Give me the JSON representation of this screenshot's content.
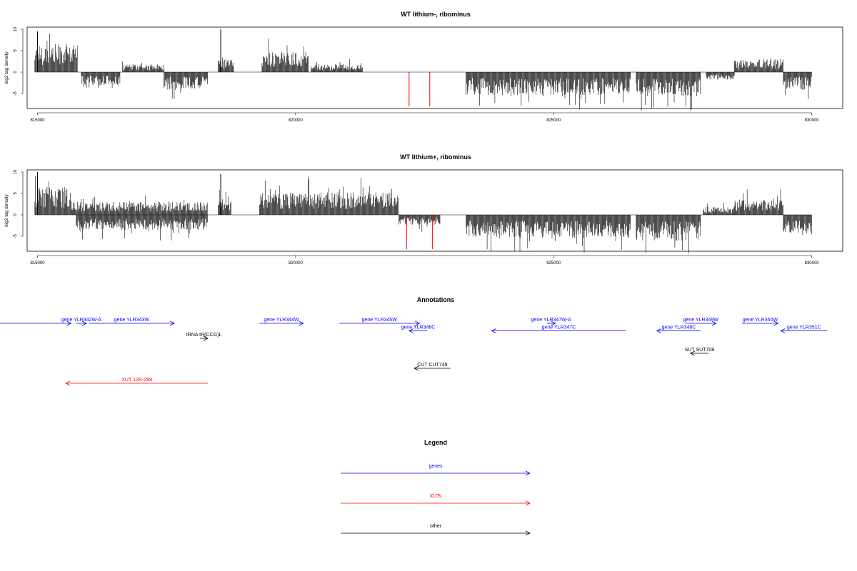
{
  "chart_data": [
    {
      "type": "bar",
      "title": "WT lithium-, ribominus",
      "ylabel": "log2 tag density",
      "xlim": [
        814800,
        830600
      ],
      "ylim": [
        -8.5,
        10.5
      ],
      "x_ticks": [
        815000,
        820000,
        825000,
        830000
      ],
      "x_tick_labels": [
        "815000",
        "820000",
        "825000",
        "830000"
      ],
      "y_ticks": [
        -5,
        0,
        5,
        10
      ],
      "y_tick_labels": [
        "-5",
        "0",
        "5",
        "10"
      ],
      "grid": false,
      "density_regions": [
        {
          "start": 814950,
          "end": 815780,
          "sign": 1,
          "level": 5.5
        },
        {
          "start": 815850,
          "end": 816600,
          "sign": -1,
          "level": 2.5
        },
        {
          "start": 816650,
          "end": 817450,
          "sign": 1,
          "level": 1.5
        },
        {
          "start": 817450,
          "end": 818300,
          "sign": -1,
          "level": 3.5
        },
        {
          "start": 818500,
          "end": 818800,
          "sign": 1,
          "level": 2.5
        },
        {
          "start": 819350,
          "end": 820250,
          "sign": 1,
          "level": 4.0
        },
        {
          "start": 820300,
          "end": 821300,
          "sign": 1,
          "level": 1.5
        },
        {
          "start": 823300,
          "end": 826500,
          "sign": -1,
          "level": 4.5
        },
        {
          "start": 826600,
          "end": 827850,
          "sign": -1,
          "level": 5.0
        },
        {
          "start": 827950,
          "end": 828500,
          "sign": -1,
          "level": 1.5
        },
        {
          "start": 828500,
          "end": 829450,
          "sign": 1,
          "level": 2.5
        },
        {
          "start": 829450,
          "end": 830000,
          "sign": -1,
          "level": 3.5
        }
      ],
      "spikes": [
        {
          "x": 815000,
          "value": 9.5
        },
        {
          "x": 818550,
          "value": 10
        },
        {
          "x": 822200,
          "value": -8,
          "color": "#ff0000"
        },
        {
          "x": 822600,
          "value": -8,
          "color": "#ff0000"
        }
      ]
    },
    {
      "type": "bar",
      "title": "WT lithium+, ribominus",
      "ylabel": "log2 tag density",
      "xlim": [
        814800,
        830600
      ],
      "ylim": [
        -8.5,
        10.5
      ],
      "x_ticks": [
        815000,
        820000,
        825000,
        830000
      ],
      "x_tick_labels": [
        "815000",
        "820000",
        "825000",
        "830000"
      ],
      "y_ticks": [
        -5,
        0,
        5,
        10
      ],
      "y_tick_labels": [
        "-5",
        "0",
        "5",
        "10"
      ],
      "grid": false,
      "density_regions": [
        {
          "start": 814950,
          "end": 815650,
          "sign": 1,
          "level": 5.5
        },
        {
          "start": 815650,
          "end": 818300,
          "sign": 1,
          "level": 2.5
        },
        {
          "start": 815750,
          "end": 818300,
          "sign": -1,
          "level": 3.0
        },
        {
          "start": 818500,
          "end": 818750,
          "sign": 1,
          "level": 3.0
        },
        {
          "start": 819300,
          "end": 822000,
          "sign": 1,
          "level": 4.5
        },
        {
          "start": 822000,
          "end": 822800,
          "sign": -1,
          "level": 2.0
        },
        {
          "start": 823300,
          "end": 826500,
          "sign": -1,
          "level": 4.5
        },
        {
          "start": 826600,
          "end": 827850,
          "sign": -1,
          "level": 5.0
        },
        {
          "start": 827900,
          "end": 828500,
          "sign": 1,
          "level": 1.5
        },
        {
          "start": 828500,
          "end": 829450,
          "sign": 1,
          "level": 3.0
        },
        {
          "start": 829450,
          "end": 830000,
          "sign": -1,
          "level": 4.0
        }
      ],
      "spikes": [
        {
          "x": 815000,
          "value": 10
        },
        {
          "x": 818550,
          "value": 9.5
        },
        {
          "x": 822150,
          "value": -8,
          "color": "#ff0000"
        },
        {
          "x": 822650,
          "value": -8,
          "color": "#ff0000"
        }
      ]
    }
  ],
  "annotations": {
    "title": "Annotations",
    "features": [
      {
        "label": "",
        "start": 813600,
        "end": 815650,
        "dir": "+",
        "row": 0,
        "color": "#0000ff"
      },
      {
        "label": "gene YLR342W-A",
        "start": 815750,
        "end": 815950,
        "dir": "+",
        "row": 0,
        "color": "#0000ff"
      },
      {
        "label": "gene YLR343W",
        "start": 816000,
        "end": 817650,
        "dir": "+",
        "row": 0,
        "color": "#0000ff"
      },
      {
        "label": "gene YLR344W",
        "start": 819300,
        "end": 820150,
        "dir": "+",
        "row": 0,
        "color": "#0000ff"
      },
      {
        "label": "gene YLR345W",
        "start": 820850,
        "end": 822400,
        "dir": "+",
        "row": 0,
        "color": "#0000ff"
      },
      {
        "label": "gene YLR346C",
        "start": 822200,
        "end": 822550,
        "dir": "-",
        "row": 1,
        "color": "#0000ff"
      },
      {
        "label": "gene YLR347W-A",
        "start": 824950,
        "end": 824950,
        "dir": "+",
        "row": 0,
        "color": "#0000ff"
      },
      {
        "label": "gene YLR347C",
        "start": 823800,
        "end": 826400,
        "dir": "-",
        "row": 1,
        "color": "#0000ff"
      },
      {
        "label": "gene YLR348C",
        "start": 827000,
        "end": 827850,
        "dir": "-",
        "row": 1,
        "color": "#0000ff"
      },
      {
        "label": "gene YLR349W",
        "start": 827550,
        "end": 828150,
        "dir": "+",
        "row": 0,
        "color": "#0000ff"
      },
      {
        "label": "gene YLR350W",
        "start": 828650,
        "end": 829350,
        "dir": "+",
        "row": 0,
        "color": "#0000ff"
      },
      {
        "label": "gene YLR351C",
        "start": 829400,
        "end": 830300,
        "dir": "-",
        "row": 1,
        "color": "#0000ff"
      },
      {
        "label": "tRNA tR(CCG)L",
        "start": 818150,
        "end": 818300,
        "dir": "+",
        "row": 2,
        "color": "#000000"
      },
      {
        "label": "SUT SUT708",
        "start": 827650,
        "end": 828000,
        "dir": "-",
        "row": 4,
        "color": "#000000"
      },
      {
        "label": "CUT CUT749",
        "start": 822300,
        "end": 823000,
        "dir": "-",
        "row": 6,
        "color": "#000000"
      },
      {
        "label": "XUT 12R-299",
        "start": 815550,
        "end": 818300,
        "dir": "-",
        "row": 8,
        "color": "#ff0000"
      }
    ]
  },
  "legend": {
    "title": "Legend",
    "items": [
      {
        "label": "genes",
        "color": "#0000ff"
      },
      {
        "label": "XUTs",
        "color": "#ff0000"
      },
      {
        "label": "other",
        "color": "#000000"
      }
    ]
  }
}
